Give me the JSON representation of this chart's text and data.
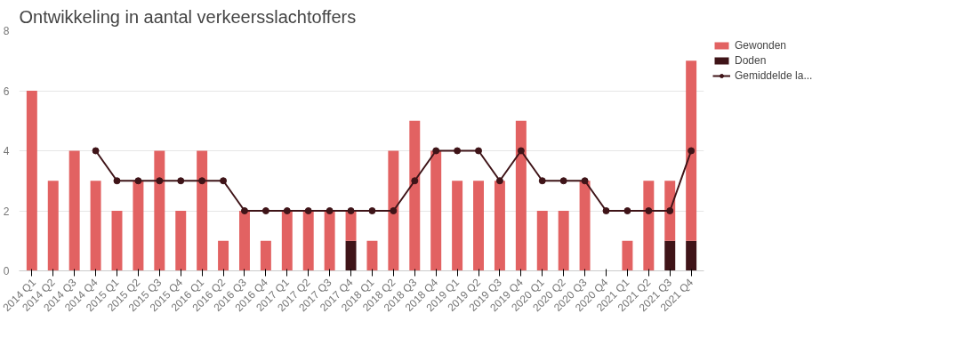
{
  "chart_data": {
    "type": "bar",
    "title": "Ontwikkeling in aantal verkeersslachtoffers",
    "categories": [
      "2014 Q1",
      "2014 Q2",
      "2014 Q3",
      "2014 Q4",
      "2015 Q1",
      "2015 Q2",
      "2015 Q3",
      "2015 Q4",
      "2016 Q1",
      "2016 Q2",
      "2016 Q3",
      "2016 Q4",
      "2017 Q1",
      "2017 Q2",
      "2017 Q3",
      "2017 Q4",
      "2018 Q1",
      "2018 Q2",
      "2018 Q3",
      "2018 Q4",
      "2019 Q1",
      "2019 Q2",
      "2019 Q3",
      "2019 Q4",
      "2020 Q1",
      "2020 Q2",
      "2020 Q3",
      "2020 Q4",
      "2021 Q1",
      "2021 Q2",
      "2021 Q3",
      "2021 Q4"
    ],
    "stacked": true,
    "series": [
      {
        "name": "Doden",
        "color": "#3f1418",
        "values": [
          null,
          null,
          null,
          null,
          null,
          null,
          null,
          null,
          null,
          null,
          null,
          null,
          null,
          null,
          null,
          1,
          null,
          null,
          null,
          null,
          null,
          null,
          null,
          null,
          null,
          null,
          null,
          null,
          null,
          null,
          1,
          1
        ]
      },
      {
        "name": "Gewonden",
        "color": "#e26262",
        "values": [
          6,
          3,
          4,
          3,
          2,
          3,
          4,
          2,
          4,
          1,
          2,
          1,
          2,
          2,
          2,
          1,
          1,
          4,
          5,
          4,
          3,
          3,
          3,
          5,
          2,
          2,
          3,
          0,
          1,
          3,
          2,
          6
        ]
      },
      {
        "name": "Gemiddelde la...",
        "type": "line",
        "color": "#3f1418",
        "marker": "circle",
        "values": [
          null,
          null,
          null,
          4,
          3,
          3,
          3,
          3,
          3,
          3,
          2,
          2,
          2,
          2,
          2,
          2,
          2,
          2,
          3,
          4,
          4,
          4,
          3,
          4,
          3,
          3,
          3,
          2,
          2,
          2,
          2,
          4
        ]
      }
    ],
    "ylim": [
      0,
      8
    ],
    "yticks": [
      0,
      2,
      4,
      6,
      8
    ],
    "grid": "y",
    "legend": "top right"
  }
}
